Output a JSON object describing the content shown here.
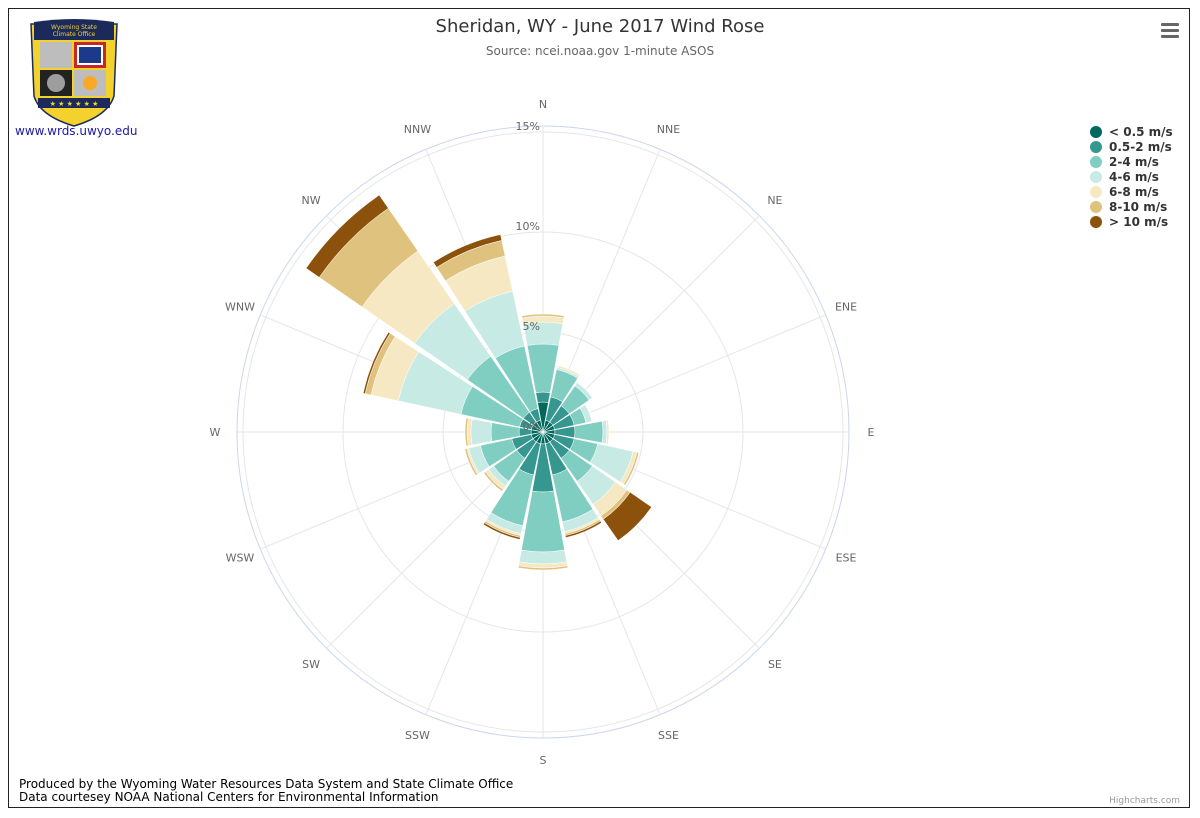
{
  "header": {
    "title": "Sheridan, WY - June 2017 Wind Rose",
    "subtitle": "Source: ncei.noaa.gov 1-minute ASOS"
  },
  "logo": {
    "text_line1": "Wyoming State",
    "text_line2": "Climate Office",
    "link": "www.wrds.uwyo.edu"
  },
  "footer": {
    "credit_line1": "Produced by the Wyoming Water Resources Data System and State Climate Office",
    "credit_line2": "Data courtesey NOAA National Centers for Environmental Information",
    "highcharts": "Highcharts.com"
  },
  "menu": {
    "icon": "hamburger-menu-icon"
  },
  "chart_data": {
    "type": "windrose",
    "title": "Sheridan, WY - June 2017 Wind Rose",
    "subtitle": "Source: ncei.noaa.gov 1-minute ASOS",
    "directions": [
      "N",
      "NNE",
      "NE",
      "ENE",
      "E",
      "ESE",
      "SE",
      "SSE",
      "S",
      "SSW",
      "SW",
      "WSW",
      "W",
      "WNW",
      "NW",
      "NNW"
    ],
    "radial_axis": {
      "min": 0,
      "max": 15,
      "unit": "%",
      "tick_labels": [
        "0%",
        "5%",
        "10%",
        "15%"
      ]
    },
    "legend_placement": "top-right",
    "series": [
      {
        "name": "< 0.5 m/s",
        "color": "#00695c",
        "values": [
          1.5,
          0.6,
          0.6,
          0.6,
          0.6,
          0.6,
          0.6,
          0.6,
          0.6,
          0.6,
          0.6,
          0.6,
          0.6,
          0.6,
          0.6,
          0.6
        ]
      },
      {
        "name": "0.5-2 m/s",
        "color": "#35978f",
        "values": [
          0.5,
          1.2,
          1.0,
          1.0,
          1.0,
          1.0,
          1.0,
          1.6,
          2.4,
          1.6,
          1.0,
          1.0,
          0.6,
          0.6,
          0.6,
          0.6
        ]
      },
      {
        "name": "2-4 m/s",
        "color": "#80cdc1",
        "values": [
          2.4,
          1.4,
          1.2,
          0.6,
          1.4,
          1.2,
          1.4,
          2.4,
          3.0,
          2.6,
          1.4,
          1.6,
          1.4,
          3.0,
          3.4,
          3.2
        ]
      },
      {
        "name": "4-6 m/s",
        "color": "#c7eae5",
        "values": [
          1.1,
          0.1,
          0.2,
          0.3,
          0.2,
          1.8,
          1.4,
          0.5,
          0.6,
          0.4,
          0.3,
          0.6,
          1.0,
          3.2,
          3.2,
          2.8
        ]
      },
      {
        "name": "6-8 m/s",
        "color": "#f6e8c3",
        "values": [
          0.3,
          0.1,
          0.0,
          0.0,
          0.1,
          0.2,
          0.7,
          0.1,
          0.2,
          0.1,
          0.2,
          0.1,
          0.2,
          1.4,
          3.2,
          1.8
        ]
      },
      {
        "name": "8-10 m/s",
        "color": "#dfc27d",
        "values": [
          0.1,
          0.0,
          0.0,
          0.0,
          0.0,
          0.1,
          0.2,
          0.1,
          0.1,
          0.1,
          0.1,
          0.1,
          0.1,
          0.3,
          2.6,
          0.8
        ]
      },
      {
        "name": "> 10 m/s",
        "color": "#8c510a",
        "values": [
          0.0,
          0.0,
          0.0,
          0.0,
          0.0,
          0.0,
          1.3,
          0.1,
          0.0,
          0.1,
          0.0,
          0.0,
          0.0,
          0.1,
          0.8,
          0.3
        ]
      }
    ]
  }
}
